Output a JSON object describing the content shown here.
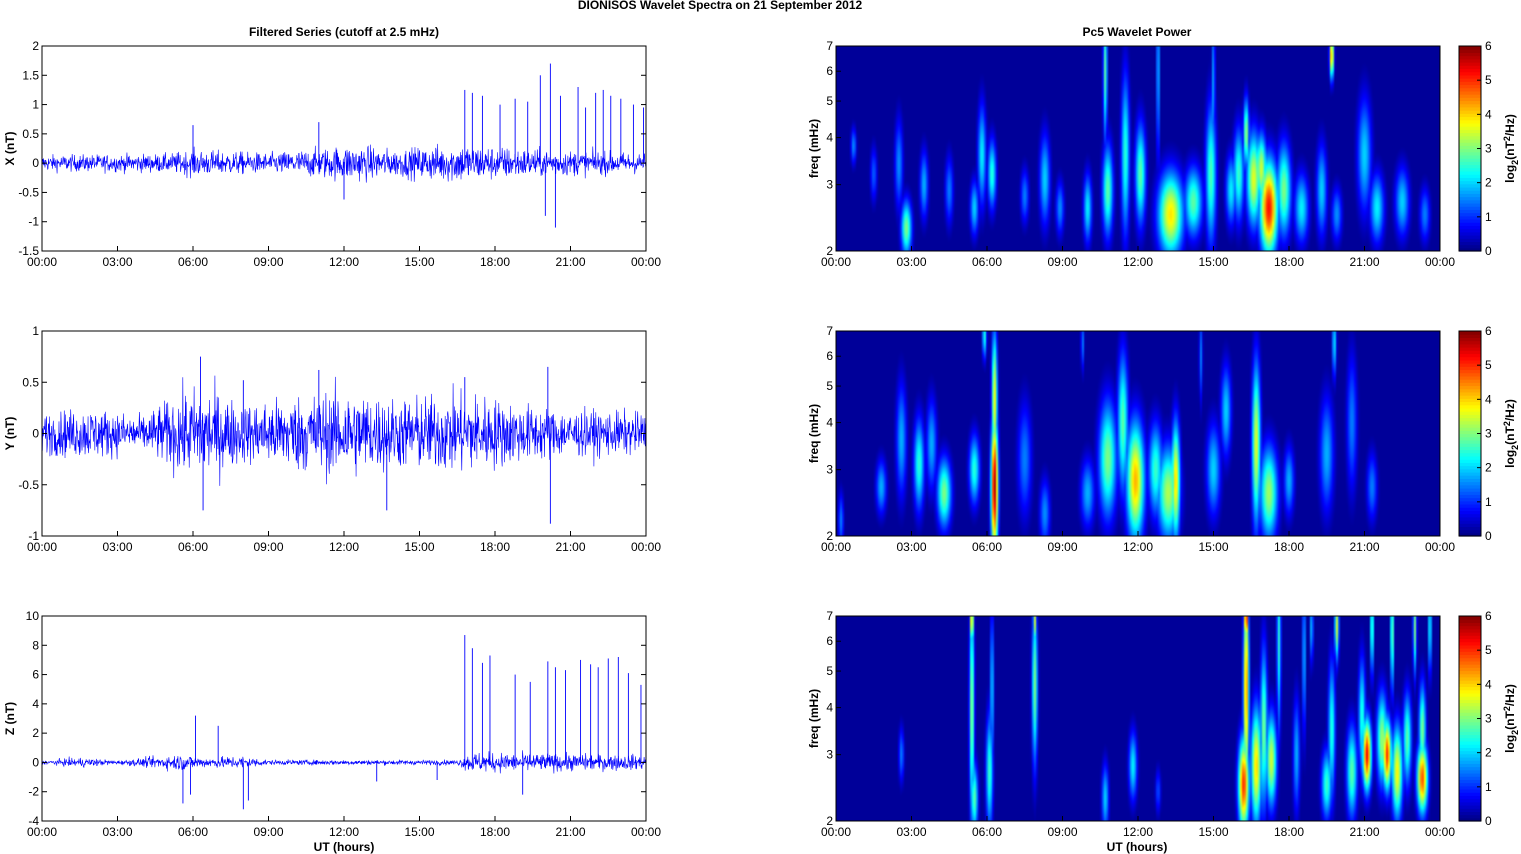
{
  "figure": {
    "title": "DIONISOS Wavelet Spectra on 21 September 2012",
    "left_title": "Filtered Series (cutoff at 2.5 mHz)",
    "right_title": "Pc5 Wavelet Power",
    "xlabel": "UT (hours)"
  },
  "time_ticks": [
    "00:00",
    "03:00",
    "06:00",
    "09:00",
    "12:00",
    "15:00",
    "18:00",
    "21:00",
    "00:00"
  ],
  "colorbar": {
    "label_main": "log",
    "label_sub": "2",
    "label_rest": "(nT",
    "label_sup": "2",
    "label_end": "/Hz)",
    "ticks": [
      "0",
      "1",
      "2",
      "3",
      "4",
      "5",
      "6"
    ]
  },
  "colors": {
    "trace": "#0000ff",
    "background": "#00008f",
    "colormap": "jet"
  },
  "chart_data": [
    {
      "type": "line",
      "component": "X",
      "ylabel": "X (nT)",
      "x_range_hours": [
        0,
        24
      ],
      "ylim": [
        -1.5,
        2
      ],
      "yticks": [
        "-1.5",
        "-1",
        "-0.5",
        "0",
        "0.5",
        "1",
        "1.5",
        "2"
      ],
      "noise_envelope": [
        [
          0,
          0.12
        ],
        [
          5,
          0.14
        ],
        [
          6,
          0.2
        ],
        [
          9,
          0.15
        ],
        [
          11,
          0.22
        ],
        [
          12.5,
          0.28
        ],
        [
          14,
          0.2
        ],
        [
          16.5,
          0.3
        ],
        [
          18,
          0.25
        ],
        [
          20,
          0.2
        ],
        [
          24,
          0.15
        ]
      ],
      "spikes": [
        [
          6,
          0.65
        ],
        [
          11,
          0.7
        ],
        [
          12,
          -0.62
        ],
        [
          16.8,
          1.25
        ],
        [
          17.1,
          1.2
        ],
        [
          17.5,
          1.15
        ],
        [
          18.2,
          1.0
        ],
        [
          18.8,
          1.1
        ],
        [
          19.3,
          1.05
        ],
        [
          19.8,
          1.5
        ],
        [
          20.0,
          -0.9
        ],
        [
          20.2,
          1.7
        ],
        [
          20.4,
          -1.1
        ],
        [
          20.6,
          1.15
        ],
        [
          21.3,
          1.3
        ],
        [
          21.6,
          0.95
        ],
        [
          22.0,
          1.2
        ],
        [
          22.3,
          1.25
        ],
        [
          22.6,
          1.15
        ],
        [
          23.0,
          1.1
        ],
        [
          23.5,
          1.0
        ],
        [
          23.9,
          0.95
        ]
      ]
    },
    {
      "type": "line",
      "component": "Y",
      "ylabel": "Y (nT)",
      "x_range_hours": [
        0,
        24
      ],
      "ylim": [
        -1,
        1
      ],
      "yticks": [
        "-1",
        "-0.5",
        "0",
        "0.5",
        "1"
      ],
      "noise_envelope": [
        [
          0,
          0.18
        ],
        [
          2,
          0.22
        ],
        [
          4,
          0.15
        ],
        [
          5.5,
          0.35
        ],
        [
          6.5,
          0.4
        ],
        [
          8,
          0.25
        ],
        [
          10,
          0.32
        ],
        [
          12,
          0.38
        ],
        [
          14,
          0.3
        ],
        [
          17,
          0.35
        ],
        [
          19,
          0.25
        ],
        [
          21,
          0.2
        ],
        [
          24,
          0.18
        ]
      ],
      "spikes": [
        [
          6.3,
          0.75
        ],
        [
          6.4,
          -0.75
        ],
        [
          8,
          0.52
        ],
        [
          11,
          0.62
        ],
        [
          13.7,
          -0.75
        ],
        [
          16.8,
          0.55
        ],
        [
          20.1,
          0.65
        ],
        [
          20.2,
          -0.88
        ]
      ]
    },
    {
      "type": "line",
      "component": "Z",
      "ylabel": "Z (nT)",
      "x_range_hours": [
        0,
        24
      ],
      "ylim": [
        -4,
        10
      ],
      "yticks": [
        "-4",
        "-2",
        "0",
        "2",
        "4",
        "6",
        "8",
        "10"
      ],
      "noise_envelope": [
        [
          0,
          0.1
        ],
        [
          1.5,
          0.3
        ],
        [
          3,
          0.12
        ],
        [
          5.5,
          0.5
        ],
        [
          6.5,
          0.3
        ],
        [
          8,
          0.4
        ],
        [
          9,
          0.15
        ],
        [
          16.5,
          0.15
        ],
        [
          17,
          0.6
        ],
        [
          24,
          0.45
        ]
      ],
      "spikes": [
        [
          5.6,
          -2.8
        ],
        [
          5.9,
          -2.2
        ],
        [
          6.1,
          3.2
        ],
        [
          7,
          2.5
        ],
        [
          8,
          -3.2
        ],
        [
          8.2,
          -2.6
        ],
        [
          13.3,
          -1.3
        ],
        [
          15.7,
          -1.2
        ],
        [
          16.8,
          8.7
        ],
        [
          17.1,
          7.8
        ],
        [
          17.5,
          6.8
        ],
        [
          17.8,
          7.3
        ],
        [
          18.8,
          6.0
        ],
        [
          19.1,
          -2.2
        ],
        [
          19.4,
          5.5
        ],
        [
          20.1,
          6.9
        ],
        [
          20.4,
          6.5
        ],
        [
          20.8,
          6.3
        ],
        [
          21.4,
          7.0
        ],
        [
          21.8,
          6.7
        ],
        [
          22.1,
          6.5
        ],
        [
          22.5,
          7.1
        ],
        [
          22.9,
          7.2
        ],
        [
          23.3,
          6.1
        ],
        [
          23.8,
          5.3
        ]
      ]
    },
    {
      "type": "heatmap",
      "component": "X",
      "ylabel": "freq (mHz)",
      "yscale": "log",
      "ylim": [
        2,
        7
      ],
      "yticks": [
        "2",
        "3",
        "4",
        "5",
        "6",
        "7"
      ],
      "clim": [
        0,
        6
      ],
      "blobs": [
        [
          0.7,
          3.8,
          0.08,
          0.08,
          1.6
        ],
        [
          1.5,
          3.2,
          0.1,
          0.12,
          1.3
        ],
        [
          2.8,
          2.3,
          0.15,
          0.12,
          3.0
        ],
        [
          2.5,
          3.4,
          0.12,
          0.2,
          1.6
        ],
        [
          3.5,
          3.0,
          0.12,
          0.15,
          1.8
        ],
        [
          4.5,
          2.9,
          0.12,
          0.15,
          1.5
        ],
        [
          5.5,
          2.6,
          0.12,
          0.12,
          2.0
        ],
        [
          5.8,
          3.6,
          0.12,
          0.22,
          2.2
        ],
        [
          6.2,
          3.2,
          0.12,
          0.15,
          2.5
        ],
        [
          7.5,
          2.8,
          0.12,
          0.12,
          1.5
        ],
        [
          8.3,
          3.1,
          0.15,
          0.2,
          2.0
        ],
        [
          8.9,
          2.6,
          0.12,
          0.12,
          1.6
        ],
        [
          10.0,
          2.6,
          0.12,
          0.15,
          2.2
        ],
        [
          10.8,
          2.9,
          0.15,
          0.2,
          2.8
        ],
        [
          10.7,
          6.0,
          0.06,
          0.3,
          2.8
        ],
        [
          11.5,
          3.6,
          0.12,
          0.35,
          2.5
        ],
        [
          12.1,
          3.2,
          0.15,
          0.22,
          2.8
        ],
        [
          13.3,
          2.5,
          0.35,
          0.18,
          3.9
        ],
        [
          14.2,
          2.7,
          0.25,
          0.15,
          2.8
        ],
        [
          14.9,
          3.2,
          0.15,
          0.3,
          2.7
        ],
        [
          15.7,
          2.9,
          0.15,
          0.15,
          2.2
        ],
        [
          16.3,
          4.1,
          0.08,
          0.15,
          3.2
        ],
        [
          16.0,
          3.2,
          0.15,
          0.2,
          2.6
        ],
        [
          16.6,
          3.1,
          0.2,
          0.2,
          3.6
        ],
        [
          17.2,
          2.6,
          0.25,
          0.2,
          5.2
        ],
        [
          16.9,
          3.3,
          0.15,
          0.15,
          3.5
        ],
        [
          17.8,
          2.9,
          0.2,
          0.2,
          3.0
        ],
        [
          18.5,
          2.6,
          0.2,
          0.15,
          2.2
        ],
        [
          19.3,
          2.9,
          0.15,
          0.2,
          2.0
        ],
        [
          19.7,
          6.6,
          0.06,
          0.1,
          4.5
        ],
        [
          19.9,
          2.5,
          0.15,
          0.12,
          1.6
        ],
        [
          21.0,
          3.6,
          0.2,
          0.25,
          2.0
        ],
        [
          21.5,
          2.6,
          0.2,
          0.15,
          2.2
        ],
        [
          22.5,
          2.7,
          0.2,
          0.15,
          2.0
        ],
        [
          23.4,
          2.5,
          0.15,
          0.12,
          1.5
        ],
        [
          12.8,
          6.0,
          0.05,
          0.4,
          2.0
        ],
        [
          15.0,
          5.5,
          0.05,
          0.35,
          1.8
        ]
      ]
    },
    {
      "type": "heatmap",
      "component": "Y",
      "ylabel": "freq (mHz)",
      "yscale": "log",
      "ylim": [
        2,
        7
      ],
      "yticks": [
        "2",
        "3",
        "4",
        "5",
        "6",
        "7"
      ],
      "clim": [
        0,
        6
      ],
      "blobs": [
        [
          0.2,
          2.2,
          0.08,
          0.12,
          1.5
        ],
        [
          1.8,
          2.7,
          0.15,
          0.12,
          1.8
        ],
        [
          2.6,
          3.6,
          0.15,
          0.25,
          1.8
        ],
        [
          3.3,
          3.1,
          0.15,
          0.2,
          2.5
        ],
        [
          4.3,
          2.6,
          0.2,
          0.15,
          3.0
        ],
        [
          3.8,
          3.5,
          0.15,
          0.2,
          1.8
        ],
        [
          5.5,
          3.0,
          0.15,
          0.15,
          2.5
        ],
        [
          6.3,
          2.7,
          0.1,
          0.3,
          5.8
        ],
        [
          6.3,
          4.6,
          0.08,
          0.3,
          3.8
        ],
        [
          5.9,
          6.8,
          0.06,
          0.1,
          2.5
        ],
        [
          7.5,
          3.2,
          0.2,
          0.25,
          1.5
        ],
        [
          8.3,
          2.3,
          0.15,
          0.15,
          1.6
        ],
        [
          10.0,
          2.6,
          0.2,
          0.15,
          1.8
        ],
        [
          10.8,
          3.2,
          0.25,
          0.25,
          3.0
        ],
        [
          11.4,
          4.0,
          0.15,
          0.3,
          2.8
        ],
        [
          11.9,
          2.8,
          0.25,
          0.25,
          4.2
        ],
        [
          12.7,
          3.0,
          0.2,
          0.2,
          2.6
        ],
        [
          13.2,
          2.6,
          0.3,
          0.2,
          3.3
        ],
        [
          13.5,
          2.8,
          0.12,
          0.25,
          4.0
        ],
        [
          15.0,
          3.0,
          0.2,
          0.2,
          2.0
        ],
        [
          15.5,
          4.3,
          0.15,
          0.2,
          2.0
        ],
        [
          16.7,
          3.5,
          0.12,
          0.35,
          3.6
        ],
        [
          17.2,
          2.6,
          0.25,
          0.2,
          3.2
        ],
        [
          18.0,
          2.8,
          0.15,
          0.15,
          1.8
        ],
        [
          19.5,
          3.3,
          0.2,
          0.25,
          1.8
        ],
        [
          20.5,
          4.0,
          0.15,
          0.3,
          1.5
        ],
        [
          21.3,
          2.7,
          0.15,
          0.15,
          1.5
        ],
        [
          19.8,
          6.5,
          0.06,
          0.15,
          2.2
        ],
        [
          9.8,
          6.5,
          0.05,
          0.12,
          1.5
        ],
        [
          14.5,
          6.0,
          0.05,
          0.2,
          1.5
        ]
      ]
    },
    {
      "type": "heatmap",
      "component": "Z",
      "ylabel": "freq (mHz)",
      "yscale": "log",
      "ylim": [
        2,
        7
      ],
      "yticks": [
        "2",
        "3",
        "4",
        "5",
        "6",
        "7"
      ],
      "clim": [
        0,
        6
      ],
      "blobs": [
        [
          2.6,
          3.0,
          0.08,
          0.12,
          1.5
        ],
        [
          5.5,
          2.3,
          0.1,
          0.15,
          2.8
        ],
        [
          5.4,
          4.0,
          0.07,
          0.5,
          3.2
        ],
        [
          5.4,
          6.8,
          0.05,
          0.1,
          4.5
        ],
        [
          6.1,
          2.7,
          0.1,
          0.25,
          2.6
        ],
        [
          6.2,
          4.5,
          0.06,
          0.35,
          2.0
        ],
        [
          7.9,
          4.6,
          0.08,
          0.35,
          3.0
        ],
        [
          7.9,
          6.8,
          0.05,
          0.1,
          3.5
        ],
        [
          10.7,
          2.3,
          0.1,
          0.15,
          2.0
        ],
        [
          11.8,
          2.8,
          0.12,
          0.15,
          2.2
        ],
        [
          12.8,
          2.4,
          0.08,
          0.1,
          1.2
        ],
        [
          16.2,
          2.5,
          0.15,
          0.2,
          5.0
        ],
        [
          16.3,
          4.5,
          0.08,
          0.45,
          4.5
        ],
        [
          16.3,
          6.9,
          0.06,
          0.1,
          5.5
        ],
        [
          16.7,
          2.8,
          0.15,
          0.25,
          4.0
        ],
        [
          17.0,
          3.5,
          0.1,
          0.35,
          3.0
        ],
        [
          17.3,
          2.9,
          0.15,
          0.2,
          3.5
        ],
        [
          17.6,
          6.0,
          0.06,
          0.4,
          2.5
        ],
        [
          18.3,
          3.0,
          0.1,
          0.25,
          1.8
        ],
        [
          18.6,
          5.5,
          0.05,
          0.35,
          2.0
        ],
        [
          19.5,
          2.5,
          0.15,
          0.15,
          2.6
        ],
        [
          19.7,
          3.5,
          0.1,
          0.3,
          2.5
        ],
        [
          19.9,
          6.6,
          0.06,
          0.15,
          3.5
        ],
        [
          20.5,
          2.7,
          0.15,
          0.2,
          2.8
        ],
        [
          20.9,
          3.8,
          0.1,
          0.25,
          2.5
        ],
        [
          21.1,
          3.0,
          0.12,
          0.15,
          5.3
        ],
        [
          21.7,
          3.3,
          0.15,
          0.2,
          3.2
        ],
        [
          21.9,
          3.0,
          0.12,
          0.15,
          5.0
        ],
        [
          22.3,
          2.7,
          0.15,
          0.2,
          3.8
        ],
        [
          22.7,
          3.3,
          0.12,
          0.2,
          2.8
        ],
        [
          23.3,
          2.6,
          0.15,
          0.15,
          4.8
        ],
        [
          23.3,
          3.5,
          0.1,
          0.2,
          3.0
        ],
        [
          21.3,
          6.5,
          0.05,
          0.2,
          3.0
        ],
        [
          22.1,
          6.3,
          0.05,
          0.25,
          3.2
        ],
        [
          23.0,
          6.5,
          0.05,
          0.2,
          3.0
        ],
        [
          23.6,
          6.5,
          0.05,
          0.2,
          2.5
        ],
        [
          18.9,
          6.5,
          0.05,
          0.15,
          2.0
        ]
      ]
    }
  ]
}
